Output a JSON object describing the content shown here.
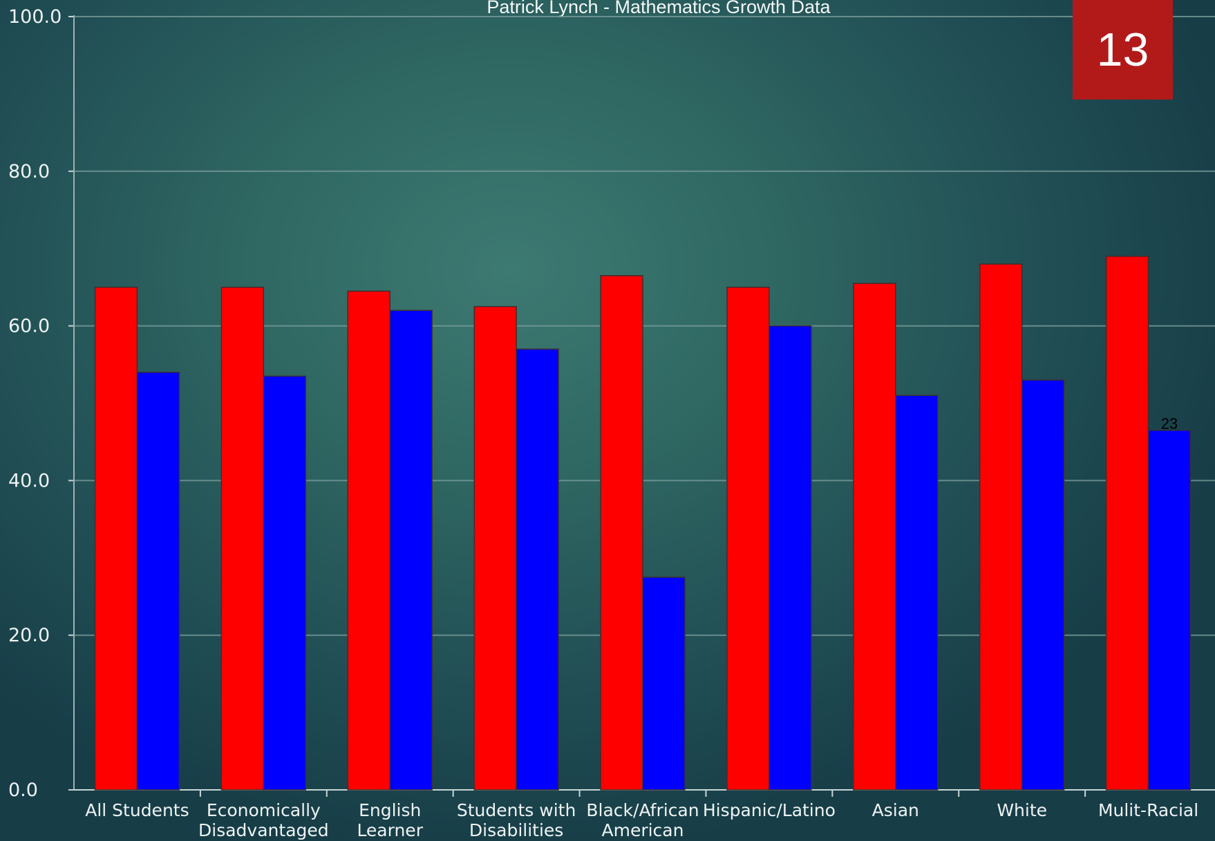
{
  "slide_number": "13",
  "colors": {
    "series_1": "#ff0000",
    "series_2": "#0000ff"
  },
  "chart_data": {
    "type": "bar",
    "title": "Patrick Lynch - Mathematics Growth Data",
    "xlabel": "",
    "ylabel": "",
    "ylim": [
      0,
      100
    ],
    "yticks": [
      "0.0",
      "20.0",
      "40.0",
      "60.0",
      "80.0",
      "100.0"
    ],
    "grid": true,
    "legend": "none",
    "categories": [
      [
        "All Students"
      ],
      [
        "Economically",
        "Disadvantaged"
      ],
      [
        "English",
        "Learner"
      ],
      [
        "Students with",
        "Disabilities"
      ],
      [
        "Black/African",
        "American"
      ],
      [
        "Hispanic/Latino"
      ],
      [
        "Asian"
      ],
      [
        "White"
      ],
      [
        "Mulit-Racial"
      ]
    ],
    "series": [
      {
        "values": [
          65,
          65,
          64.5,
          62.5,
          66.5,
          65,
          65.5,
          68,
          69
        ]
      },
      {
        "values": [
          54,
          53.5,
          62,
          57,
          27.5,
          60,
          51,
          53,
          46.5
        ]
      }
    ],
    "annotations": [
      {
        "text": "23",
        "category_index": 8,
        "series_index": 1
      }
    ]
  }
}
